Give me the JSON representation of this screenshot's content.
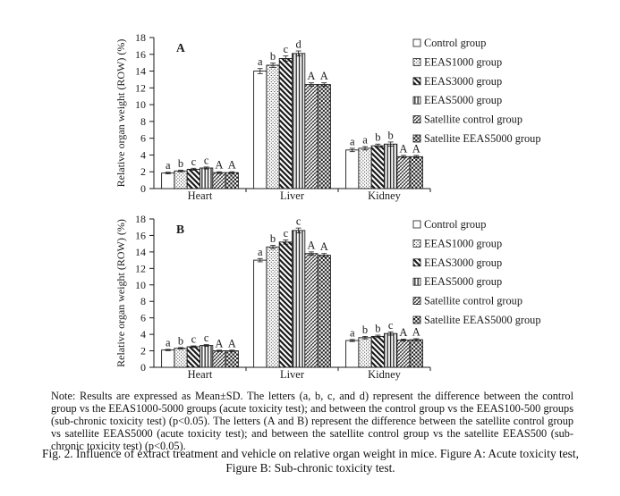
{
  "figure": {
    "note": "Note: Results are expressed as Mean±SD. The letters (a, b, c, and d) represent the difference between the control group vs the EEAS1000-5000 groups (acute toxicity test); and between the control group vs the EEAS100-500 groups (sub-chronic toxicity test) (p<0.05). The letters (A and B) represent the difference between the satellite control group vs satellite EEAS5000 (acute toxicity test); and between the satellite control group vs the satellite EEAS500 (sub-chronic toxicity test) (p<0.05).",
    "caption": "Fig. 2. Influence of extract treatment and vehicle on relative organ weight in mice. Figure A: Acute toxicity test, Figure B: Sub-chronic toxicity test."
  },
  "colors": {
    "ink": "#1a1a1a",
    "background": "#ffffff"
  },
  "chart_data": [
    {
      "type": "bar",
      "panel": "A",
      "title": "Acute toxicity test",
      "ylabel": "Relative organ weight (ROW) (%)",
      "ylim": [
        0,
        18
      ],
      "ytick_step": 2,
      "grid": false,
      "legend_position": "right",
      "categories": [
        "Heart",
        "Liver",
        "Kidney"
      ],
      "series": [
        {
          "name": "Control group",
          "pattern": "plain",
          "values": [
            1.85,
            14.0,
            4.6
          ],
          "errors": [
            0.1,
            0.3,
            0.2
          ],
          "letters": [
            "a",
            "a",
            "a"
          ]
        },
        {
          "name": "EEAS1000 group",
          "pattern": "dots",
          "values": [
            2.1,
            14.7,
            4.8
          ],
          "errors": [
            0.1,
            0.25,
            0.2
          ],
          "letters": [
            "b",
            "b",
            "a"
          ]
        },
        {
          "name": "EEAS3000 group",
          "pattern": "diag",
          "values": [
            2.3,
            15.5,
            5.1
          ],
          "errors": [
            0.12,
            0.3,
            0.2
          ],
          "letters": [
            "c",
            "c",
            "b"
          ]
        },
        {
          "name": "EEAS5000 group",
          "pattern": "vert",
          "values": [
            2.45,
            16.1,
            5.3
          ],
          "errors": [
            0.12,
            0.3,
            0.25
          ],
          "letters": [
            "c",
            "d",
            "b"
          ]
        },
        {
          "name": "Satellite control group",
          "pattern": "cross",
          "values": [
            1.9,
            12.4,
            3.8
          ],
          "errors": [
            0.1,
            0.2,
            0.15
          ],
          "letters": [
            "A",
            "A",
            "A"
          ]
        },
        {
          "name": "Satellite EEAS5000 group",
          "pattern": "check",
          "values": [
            1.9,
            12.4,
            3.8
          ],
          "errors": [
            0.1,
            0.2,
            0.15
          ],
          "letters": [
            "A",
            "A",
            "A"
          ]
        }
      ]
    },
    {
      "type": "bar",
      "panel": "B",
      "title": "Sub-chronic toxicity test",
      "ylabel": "Relative organ weight (ROW) (%)",
      "ylim": [
        0,
        18
      ],
      "ytick_step": 2,
      "grid": false,
      "legend_position": "right",
      "categories": [
        "Heart",
        "Liver",
        "Kidney"
      ],
      "series": [
        {
          "name": "Control group",
          "pattern": "plain",
          "values": [
            2.1,
            13.0,
            3.25
          ],
          "errors": [
            0.08,
            0.2,
            0.12
          ],
          "letters": [
            "a",
            "a",
            "a"
          ]
        },
        {
          "name": "EEAS1000 group",
          "pattern": "dots",
          "values": [
            2.3,
            14.6,
            3.6
          ],
          "errors": [
            0.1,
            0.2,
            0.15
          ],
          "letters": [
            "b",
            "b",
            "b"
          ]
        },
        {
          "name": "EEAS3000 group",
          "pattern": "diag",
          "values": [
            2.5,
            15.2,
            3.75
          ],
          "errors": [
            0.1,
            0.25,
            0.15
          ],
          "letters": [
            "c",
            "c",
            "b"
          ]
        },
        {
          "name": "EEAS5000 group",
          "pattern": "vert",
          "values": [
            2.65,
            16.6,
            4.1
          ],
          "errors": [
            0.1,
            0.3,
            0.2
          ],
          "letters": [
            "c",
            "c",
            "c"
          ]
        },
        {
          "name": "Satellite control group",
          "pattern": "cross",
          "values": [
            2.0,
            13.8,
            3.3
          ],
          "errors": [
            0.08,
            0.2,
            0.12
          ],
          "letters": [
            "A",
            "A",
            "A"
          ]
        },
        {
          "name": "Satellite EEAS5000 group",
          "pattern": "check",
          "values": [
            2.0,
            13.6,
            3.35
          ],
          "errors": [
            0.08,
            0.2,
            0.12
          ],
          "letters": [
            "A",
            "A",
            "A"
          ]
        }
      ]
    }
  ]
}
